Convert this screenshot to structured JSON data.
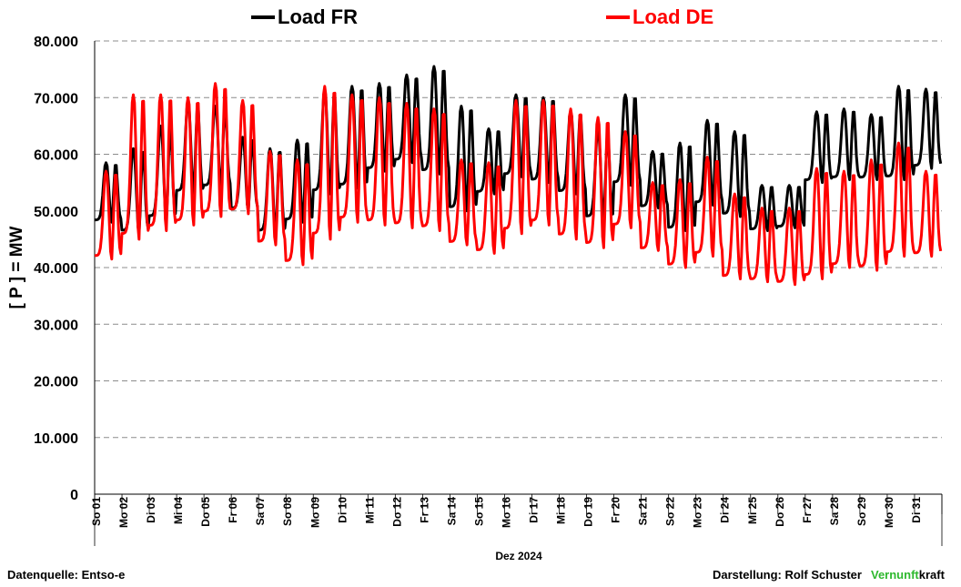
{
  "chart_data": {
    "type": "line",
    "ylabel": "[ P ] = MW",
    "xlabel": "Dez 2024",
    "ylim": [
      0,
      80000
    ],
    "yticks": [
      "0",
      "10.000",
      "20.000",
      "30.000",
      "40.000",
      "50.000",
      "60.000",
      "70.000",
      "80.000"
    ],
    "grid": "horizontal dashed",
    "legend_position": "top",
    "categories": [
      "So 01",
      "Mo 02",
      "Di 03",
      "Mi 04",
      "Do 05",
      "Fr 06",
      "Sa 07",
      "So 08",
      "Mo 09",
      "Di 10",
      "Mi 11",
      "Do 12",
      "Fr 13",
      "Sa 14",
      "So 15",
      "Mo 16",
      "Di 17",
      "Mi 18",
      "Do 19",
      "Fr 20",
      "Sa 21",
      "So 22",
      "Mo 23",
      "Di 24",
      "Mi 25",
      "Do 26",
      "Fr 27",
      "Sa 28",
      "So 29",
      "Mo 30",
      "Di 31"
    ],
    "series": [
      {
        "name": "Load FR",
        "color": "#000000",
        "day_max": [
          58500,
          61000,
          65000,
          69000,
          68500,
          63000,
          61000,
          62500,
          71000,
          72000,
          72500,
          74000,
          75500,
          68500,
          64500,
          70500,
          70000,
          67500,
          64000,
          70500,
          60500,
          62000,
          66000,
          64000,
          54500,
          54500,
          67500,
          68000,
          67000,
          72000,
          71500
        ],
        "day_min": [
          48000,
          46000,
          48500,
          53000,
          54000,
          50000,
          46000,
          48000,
          53000,
          54000,
          57000,
          58500,
          56500,
          50000,
          53000,
          56000,
          55000,
          53000,
          48500,
          54500,
          50500,
          46500,
          51000,
          49000,
          46500,
          47000,
          55000,
          55500,
          55500,
          55500,
          57500
        ]
      },
      {
        "name": "Load DE",
        "color": "#ff0000",
        "day_max": [
          57000,
          70500,
          70500,
          70000,
          72500,
          69500,
          60500,
          59000,
          72000,
          70500,
          70000,
          69000,
          68000,
          59000,
          58500,
          69500,
          69500,
          68000,
          66500,
          64000,
          55000,
          55500,
          59500,
          53000,
          50500,
          50500,
          57500,
          57000,
          59000,
          62000,
          57000
        ],
        "day_min": [
          41500,
          45000,
          46500,
          47500,
          49000,
          49500,
          44000,
          40500,
          45000,
          48000,
          47500,
          47000,
          46500,
          44000,
          42500,
          46000,
          47500,
          45000,
          43500,
          47000,
          43000,
          40000,
          42000,
          38000,
          37500,
          37000,
          38000,
          40000,
          39500,
          42000,
          42000
        ]
      }
    ]
  },
  "footer": {
    "source": "Datenquelle: Entso-e",
    "credit": "Darstellung:  Rolf Schuster",
    "brand_a": "Vernunft",
    "brand_b": "kraft"
  }
}
